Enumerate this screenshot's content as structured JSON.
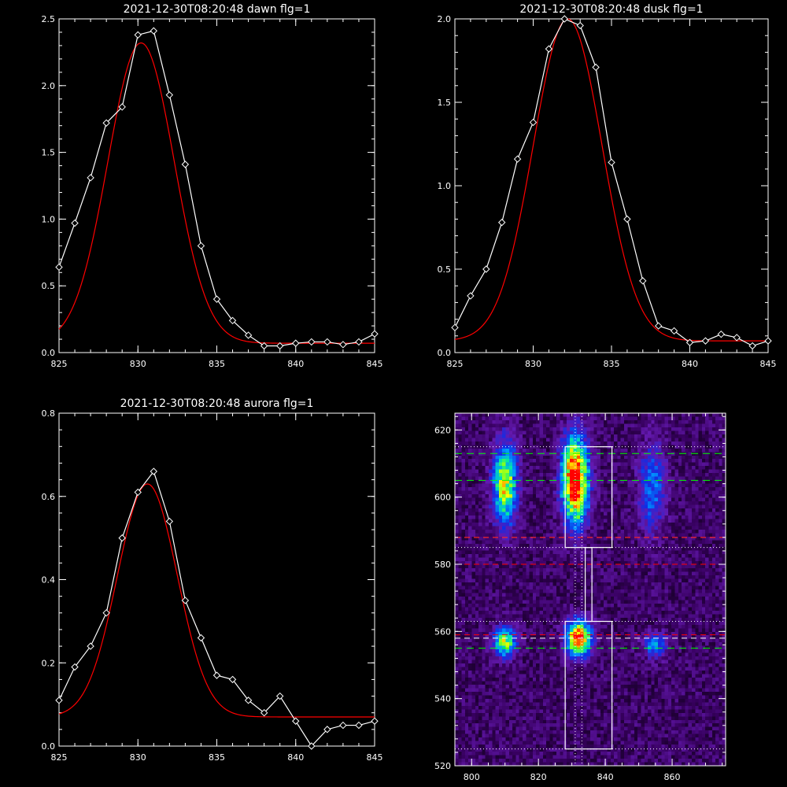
{
  "colors": {
    "background": "#000000",
    "axes": "#ffffff",
    "data": "#ffffff",
    "fit": "#ff0000",
    "green": "#00ff00"
  },
  "chart_data": [
    {
      "type": "line",
      "title": "2021-12-30T08:20:48 dawn flg=1",
      "xlim": [
        825,
        845
      ],
      "ylim": [
        0,
        2.5
      ],
      "xticks": [
        "825",
        "830",
        "835",
        "840",
        "845"
      ],
      "yticks": [
        "0.0",
        "0.5",
        "1.0",
        "1.5",
        "2.0",
        "2.5"
      ],
      "series": [
        {
          "x": [
            825,
            826,
            827,
            828,
            829,
            830,
            831,
            832,
            833,
            834,
            835,
            836,
            837,
            838,
            839,
            840,
            841,
            842,
            843,
            844,
            845
          ],
          "y": [
            0.64,
            0.97,
            1.31,
            1.72,
            1.84,
            2.38,
            2.41,
            1.93,
            1.41,
            0.8,
            0.4,
            0.24,
            0.13,
            0.05,
            0.05,
            0.07,
            0.08,
            0.08,
            0.06,
            0.08,
            0.14
          ]
        }
      ],
      "fit": {
        "amp": 2.25,
        "center": 830.2,
        "sigma": 2.1,
        "offset": 0.07
      }
    },
    {
      "type": "line",
      "title": "2021-12-30T08:20:48 dusk flg=1",
      "xlim": [
        825,
        845
      ],
      "ylim": [
        0,
        2.0
      ],
      "xticks": [
        "825",
        "830",
        "835",
        "840",
        "845"
      ],
      "yticks": [
        "0.0",
        "0.5",
        "1.0",
        "1.5",
        "2.0"
      ],
      "series": [
        {
          "x": [
            825,
            826,
            827,
            828,
            829,
            830,
            831,
            832,
            833,
            834,
            835,
            836,
            837,
            838,
            839,
            840,
            841,
            842,
            843,
            844,
            845
          ],
          "y": [
            0.15,
            0.34,
            0.5,
            0.78,
            1.16,
            1.38,
            1.82,
            2.0,
            1.96,
            1.71,
            1.14,
            0.8,
            0.43,
            0.16,
            0.13,
            0.06,
            0.07,
            0.11,
            0.09,
            0.04,
            0.07
          ]
        }
      ],
      "fit": {
        "amp": 1.93,
        "center": 832.2,
        "sigma": 2.2,
        "offset": 0.07
      }
    },
    {
      "type": "line",
      "title": "2021-12-30T08:20:48 aurora flg=1",
      "xlim": [
        825,
        845
      ],
      "ylim": [
        0,
        0.8
      ],
      "xticks": [
        "825",
        "830",
        "835",
        "840",
        "845"
      ],
      "yticks": [
        "0.0",
        "0.2",
        "0.4",
        "0.6",
        "0.8"
      ],
      "series": [
        {
          "x": [
            825,
            826,
            827,
            828,
            829,
            830,
            831,
            832,
            833,
            834,
            835,
            836,
            837,
            838,
            839,
            840,
            841,
            842,
            843,
            844,
            845
          ],
          "y": [
            0.11,
            0.19,
            0.24,
            0.32,
            0.5,
            0.61,
            0.66,
            0.54,
            0.35,
            0.26,
            0.17,
            0.16,
            0.11,
            0.08,
            0.12,
            0.06,
            0.0,
            0.04,
            0.05,
            0.05,
            0.06
          ]
        }
      ],
      "fit": {
        "amp": 0.56,
        "center": 830.6,
        "sigma": 1.9,
        "offset": 0.07
      }
    },
    {
      "type": "heatmap",
      "title": "",
      "xlim": [
        795,
        876
      ],
      "ylim": [
        520,
        625
      ],
      "xticks": [
        "800",
        "820",
        "840",
        "860"
      ],
      "yticks": [
        "520",
        "540",
        "560",
        "580",
        "600",
        "620"
      ],
      "blobs": [
        {
          "x": 810,
          "y": 604,
          "sx": 2.4,
          "sy": 8.0,
          "amp": 0.66
        },
        {
          "x": 831,
          "y": 605,
          "sx": 2.6,
          "sy": 8.5,
          "amp": 1.0
        },
        {
          "x": 854,
          "y": 603,
          "sx": 2.8,
          "sy": 9.0,
          "amp": 0.28
        },
        {
          "x": 810,
          "y": 557,
          "sx": 2.3,
          "sy": 3.0,
          "amp": 0.58
        },
        {
          "x": 832,
          "y": 558,
          "sx": 2.5,
          "sy": 3.5,
          "amp": 0.88
        },
        {
          "x": 855,
          "y": 556,
          "sx": 2.4,
          "sy": 2.5,
          "amp": 0.33
        }
      ],
      "dotted_h": [
        615,
        585,
        563,
        525
      ],
      "dotted_v": [
        831,
        833
      ],
      "dashed_green_h": [
        613,
        605,
        555
      ],
      "dashed_white_h": [
        588,
        558
      ],
      "dashed_red_h": [
        588,
        580,
        559
      ],
      "boxes": [
        {
          "x0": 828,
          "x1": 842,
          "y0": 585,
          "y1": 615
        },
        {
          "x0": 834,
          "x1": 836,
          "y0": 563,
          "y1": 585
        },
        {
          "x0": 828,
          "x1": 842,
          "y0": 525,
          "y1": 563
        }
      ]
    }
  ]
}
